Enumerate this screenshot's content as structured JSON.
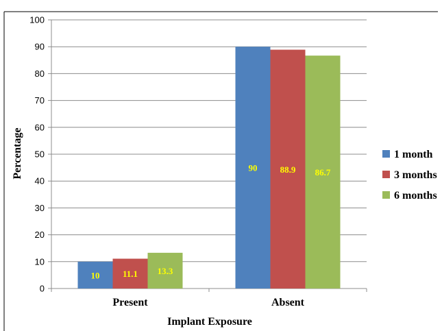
{
  "chart_data": {
    "type": "bar",
    "title": "",
    "xlabel": "Implant Exposure",
    "ylabel": "Percentage",
    "ylim": [
      0,
      100
    ],
    "yticks": [
      "0",
      "10",
      "20",
      "30",
      "40",
      "50",
      "60",
      "70",
      "80",
      "90",
      "100"
    ],
    "grid": true,
    "legend_position": "right",
    "categories": [
      "Present",
      "Absent"
    ],
    "series": [
      {
        "name": "1 month",
        "values": [
          10,
          90
        ],
        "labels": [
          "10",
          "90"
        ],
        "color": "#4F81BD"
      },
      {
        "name": "3 months",
        "values": [
          11.1,
          88.9
        ],
        "labels": [
          "11.1",
          "88.9"
        ],
        "color": "#C0504D"
      },
      {
        "name": "6 months",
        "values": [
          13.3,
          86.7
        ],
        "labels": [
          "13.3",
          "86.7"
        ],
        "color": "#9BBB59"
      }
    ],
    "data_label_color": "#FFFF00"
  }
}
